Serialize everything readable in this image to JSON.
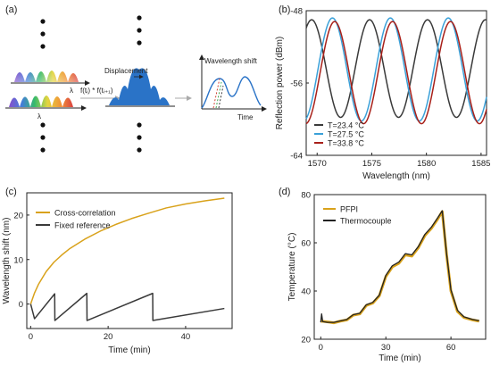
{
  "colors": {
    "gold": "#d9a21b",
    "black": "#222222",
    "grey": "#3a3a3a",
    "blue": "#3aa0d8",
    "red": "#a8201a",
    "spectrumBlue": "#2a73c7"
  },
  "panel_a": {
    "letter": "(a)",
    "lambda1": "λ",
    "lambda2": "λ",
    "formula": "f(tᵢ) * f(tᵢ₊₁)",
    "displacement": "Displacement",
    "ylabel": "Wavelength shift",
    "xlabel": "Time"
  },
  "chart_data": [
    {
      "panel": "(b)",
      "type": "line",
      "xlabel": "Wavelength (nm)",
      "ylabel": "Reflection power (dBm)",
      "xlim": [
        1569,
        1585.5
      ],
      "ylim": [
        -64,
        -48
      ],
      "xticks": [
        1570,
        1575,
        1580,
        1585
      ],
      "yticks": [
        -48,
        -56,
        -64
      ],
      "legend_position": "bottom-left",
      "series": [
        {
          "name": "T=23.4 °C",
          "color_key": "grey",
          "period": 5.3,
          "peak_at": 1574.8,
          "min": -59.8,
          "max": -49.0
        },
        {
          "name": "T=27.5 °C",
          "color_key": "blue",
          "period": 5.3,
          "peak_at": 1571.4,
          "min": -60.2,
          "max": -48.8
        },
        {
          "name": "T=33.8 °C",
          "color_key": "red",
          "period": 5.3,
          "peak_at": 1571.6,
          "min": -60.5,
          "max": -49.2
        }
      ]
    },
    {
      "panel": "(c)",
      "type": "line",
      "xlabel": "Time (min)",
      "ylabel": "Wavelength shift (nm)",
      "xlim": [
        -1,
        52
      ],
      "ylim": [
        -5.5,
        25
      ],
      "xticks": [
        0,
        20,
        40
      ],
      "yticks": [
        0,
        10,
        20
      ],
      "legend_position": "top-left",
      "series": [
        {
          "name": "Cross-correlation",
          "color_key": "gold",
          "x": [
            0,
            1,
            2,
            4,
            6,
            8,
            10,
            14,
            18,
            22,
            26,
            30,
            35,
            40,
            45,
            50
          ],
          "y": [
            0,
            2.5,
            4.4,
            7.3,
            9.4,
            11.0,
            12.4,
            14.6,
            16.4,
            17.9,
            19.2,
            20.3,
            21.6,
            22.5,
            23.2,
            23.8
          ]
        },
        {
          "name": "Fixed reference",
          "color_key": "grey",
          "x": [
            0,
            1,
            6.2,
            6.25,
            14.5,
            14.55,
            31.5,
            31.55,
            50
          ],
          "y": [
            0,
            -3.3,
            2.3,
            -3.7,
            2.4,
            -3.7,
            2.4,
            -3.7,
            -1.0
          ]
        }
      ]
    },
    {
      "panel": "(d)",
      "type": "line",
      "xlabel": "Time (min)",
      "ylabel": "Temperature (°C)",
      "xlim": [
        -3,
        76
      ],
      "ylim": [
        20,
        80
      ],
      "xticks": [
        0,
        30,
        60
      ],
      "yticks": [
        20,
        40,
        60,
        80
      ],
      "legend_position": "top-left",
      "series": [
        {
          "name": "PFPI",
          "color_key": "gold",
          "x": [
            0,
            3,
            6,
            9,
            12,
            15,
            18,
            21,
            24,
            27,
            30,
            33,
            36,
            39,
            42,
            45,
            48,
            51,
            54,
            56,
            58,
            60,
            63,
            66,
            70,
            73
          ],
          "y": [
            27.5,
            27.2,
            26.8,
            27.5,
            28.0,
            30.0,
            30.5,
            34.0,
            35.0,
            38.0,
            46.0,
            50.0,
            51.5,
            55.0,
            54.5,
            58.0,
            63.0,
            66.0,
            70.0,
            73.0,
            55.0,
            40.0,
            31.5,
            29.0,
            28.0,
            27.5
          ]
        },
        {
          "name": "Thermocouple",
          "color_key": "black",
          "x": [
            0,
            0.4,
            0.9,
            3,
            6,
            9,
            12,
            15,
            18,
            21,
            24,
            27,
            30,
            33,
            36,
            39,
            42,
            45,
            48,
            51,
            54,
            56,
            58,
            60,
            63,
            66,
            70,
            73
          ],
          "y": [
            27.0,
            30.5,
            27.3,
            27.0,
            27.0,
            27.6,
            28.2,
            30.2,
            30.8,
            34.3,
            35.3,
            38.3,
            46.5,
            50.5,
            52.0,
            55.5,
            55.0,
            58.5,
            63.5,
            66.5,
            70.5,
            73.3,
            55.5,
            40.5,
            32.0,
            29.3,
            28.2,
            27.7
          ]
        }
      ]
    }
  ]
}
